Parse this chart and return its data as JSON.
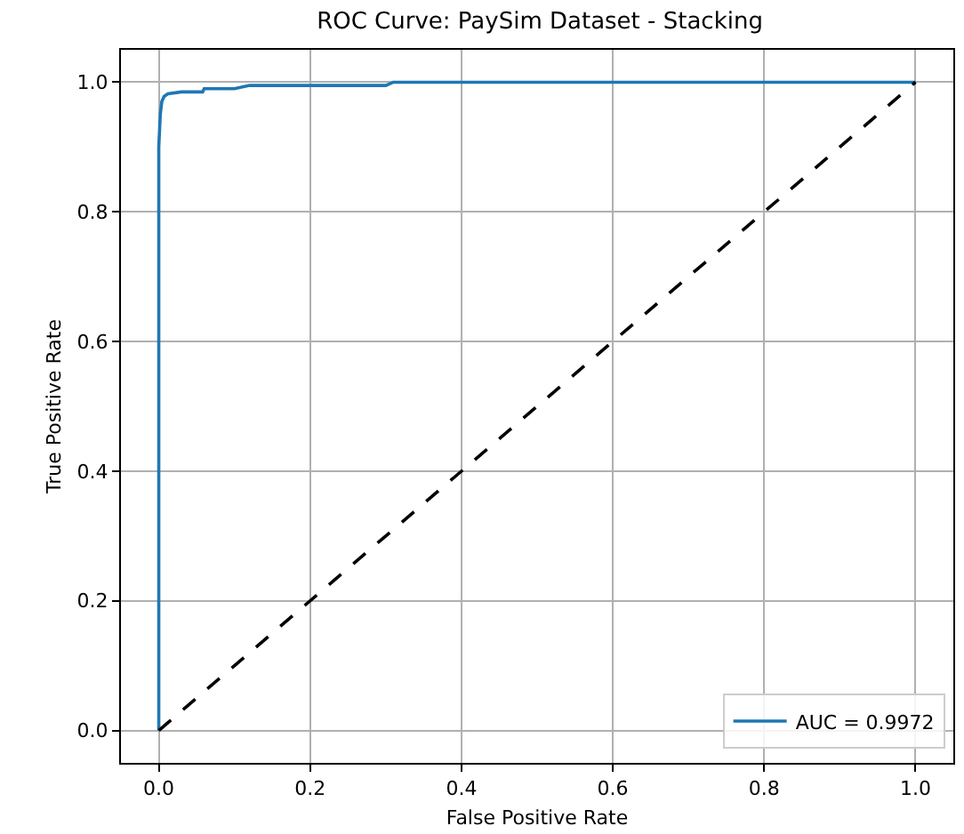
{
  "chart_data": {
    "type": "line",
    "title": "ROC Curve: PaySim Dataset - Stacking",
    "xlabel": "False Positive Rate",
    "ylabel": "True Positive Rate",
    "xlim": [
      -0.05,
      1.05
    ],
    "ylim": [
      -0.05,
      1.05
    ],
    "xticks": [
      {
        "value": 0,
        "label": "0.0"
      },
      0.2,
      0.4,
      0.6,
      0.8,
      {
        "value": 1,
        "label": "1.0"
      }
    ],
    "yticks": [
      {
        "value": 0,
        "label": "0.0"
      },
      0.2,
      0.4,
      0.6,
      0.8,
      {
        "value": 1,
        "label": "1.0"
      }
    ],
    "grid": true,
    "legend": "bottom right",
    "marker": "none",
    "series": [
      {
        "name": "AUC = 0.9972",
        "color": "#1f77b4",
        "line_style": "solid",
        "x": [
          0,
          0,
          0.002,
          0.004,
          0.007,
          0.012,
          0.03,
          0.058,
          0.06,
          0.1,
          0.12,
          0.3,
          0.31,
          1
        ],
        "values": [
          0,
          0.9,
          0.95,
          0.97,
          0.978,
          0.982,
          0.985,
          0.985,
          0.99,
          0.99,
          0.995,
          0.995,
          1,
          1
        ]
      },
      {
        "color": "#000000",
        "line_style": "dashed",
        "x": [
          0,
          1
        ],
        "values": [
          0,
          1
        ]
      }
    ]
  }
}
